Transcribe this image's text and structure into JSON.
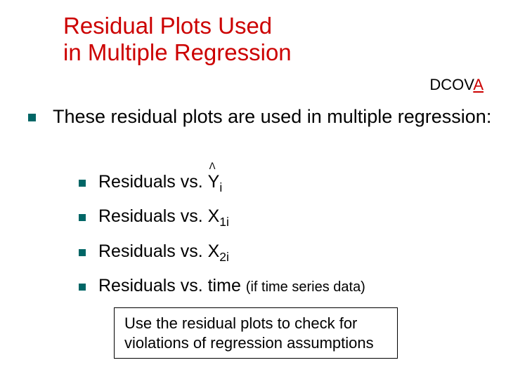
{
  "title_line1": "Residual Plots Used",
  "title_line2": "in Multiple Regression",
  "dcova_prefix": "DCOV",
  "dcova_a": "A",
  "main_bullet": "These residual plots are used in multiple regression:",
  "sub_items": {
    "item1_prefix": "Residuals vs. ",
    "item1_y": "Y",
    "item1_sub": "i",
    "item1_caret": "ᐱ",
    "item2_prefix": "Residuals vs. X",
    "item2_sub": "1i",
    "item3_prefix": "Residuals vs. X",
    "item3_sub": "2i",
    "item4_text": "Residuals vs. time ",
    "item4_paren": "(if time series data)"
  },
  "note": "Use the residual plots to check for violations of regression assumptions",
  "colors": {
    "title": "#cc0000",
    "bullet": "#006666",
    "text": "#000000",
    "dcova_a": "#cc0000"
  }
}
